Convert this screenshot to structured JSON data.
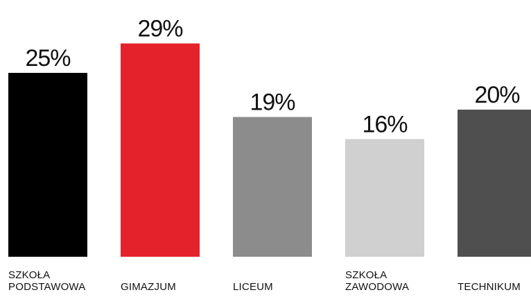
{
  "chart_data": {
    "type": "bar",
    "categories": [
      [
        "SZKOŁA",
        "PODSTAWOWA"
      ],
      [
        "GIMAZJUM"
      ],
      [
        "LICEUM"
      ],
      [
        "SZKOŁA",
        "ZAWODOWA"
      ],
      [
        "TECHNIKUM"
      ]
    ],
    "values": [
      25,
      29,
      19,
      16,
      20
    ],
    "value_labels": [
      "25%",
      "29%",
      "19%",
      "16%",
      "20%"
    ],
    "colors": [
      "#000000",
      "#e4222b",
      "#8c8c8c",
      "#d0d0d0",
      "#4f4f4f"
    ],
    "title": "",
    "xlabel": "",
    "ylabel": "",
    "unit": "%",
    "grid": false,
    "legend": "none"
  }
}
